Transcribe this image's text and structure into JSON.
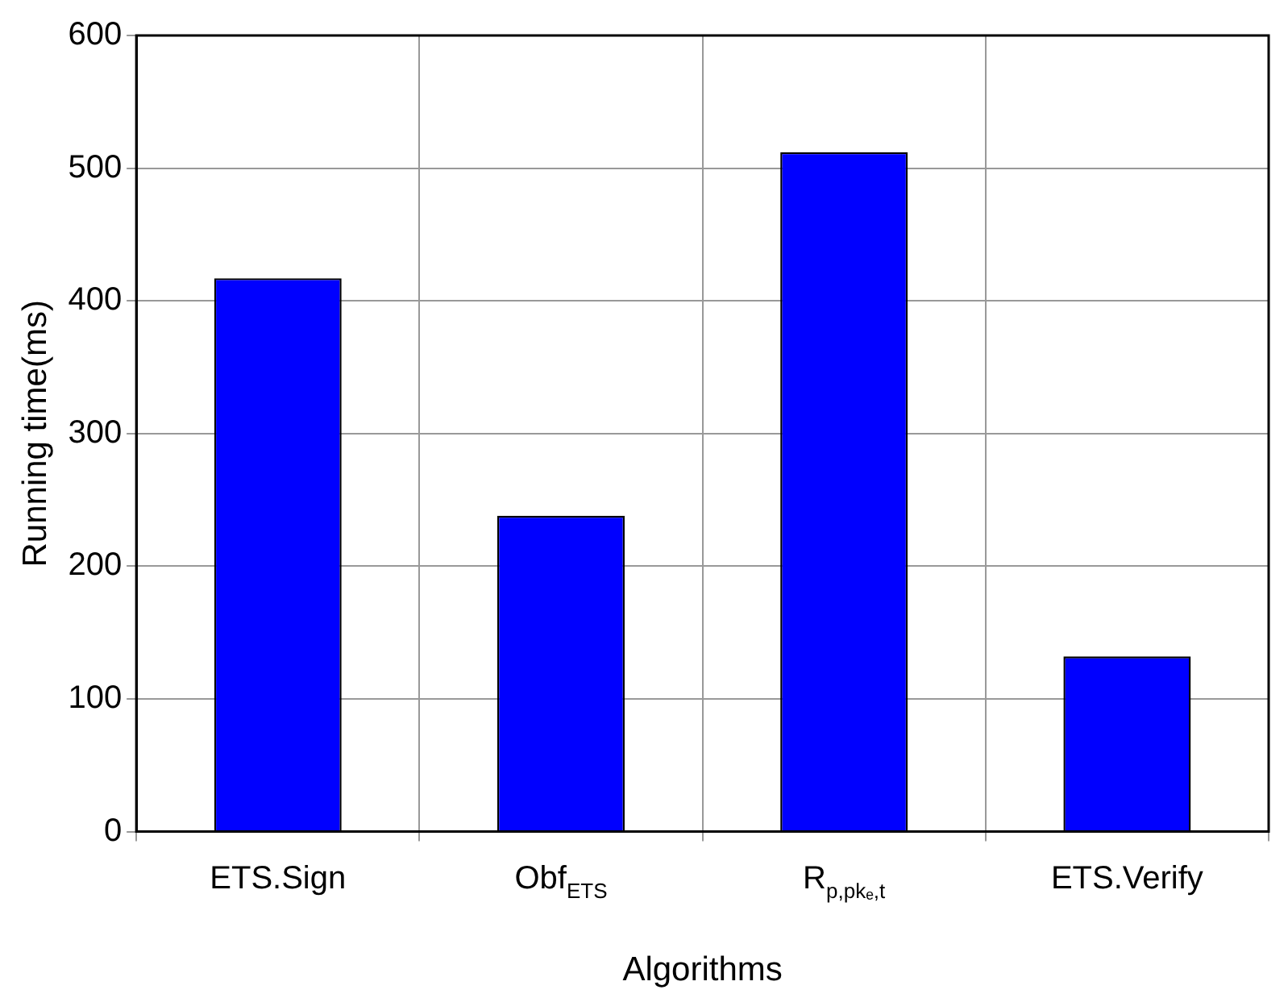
{
  "chart_data": {
    "type": "bar",
    "xlabel": "Algorithms",
    "ylabel": "Running time(ms)",
    "categories": [
      "ETS.Sign",
      "Obf$_{ETS}$",
      "R$_{p,pkₑ,t}$",
      "ETS.Verify"
    ],
    "values": [
      417,
      238,
      512,
      132
    ],
    "color": "#0000ff",
    "ylim": [
      0,
      600
    ],
    "yticks": [
      0,
      100,
      200,
      300,
      400,
      500,
      600
    ],
    "grid": true
  }
}
